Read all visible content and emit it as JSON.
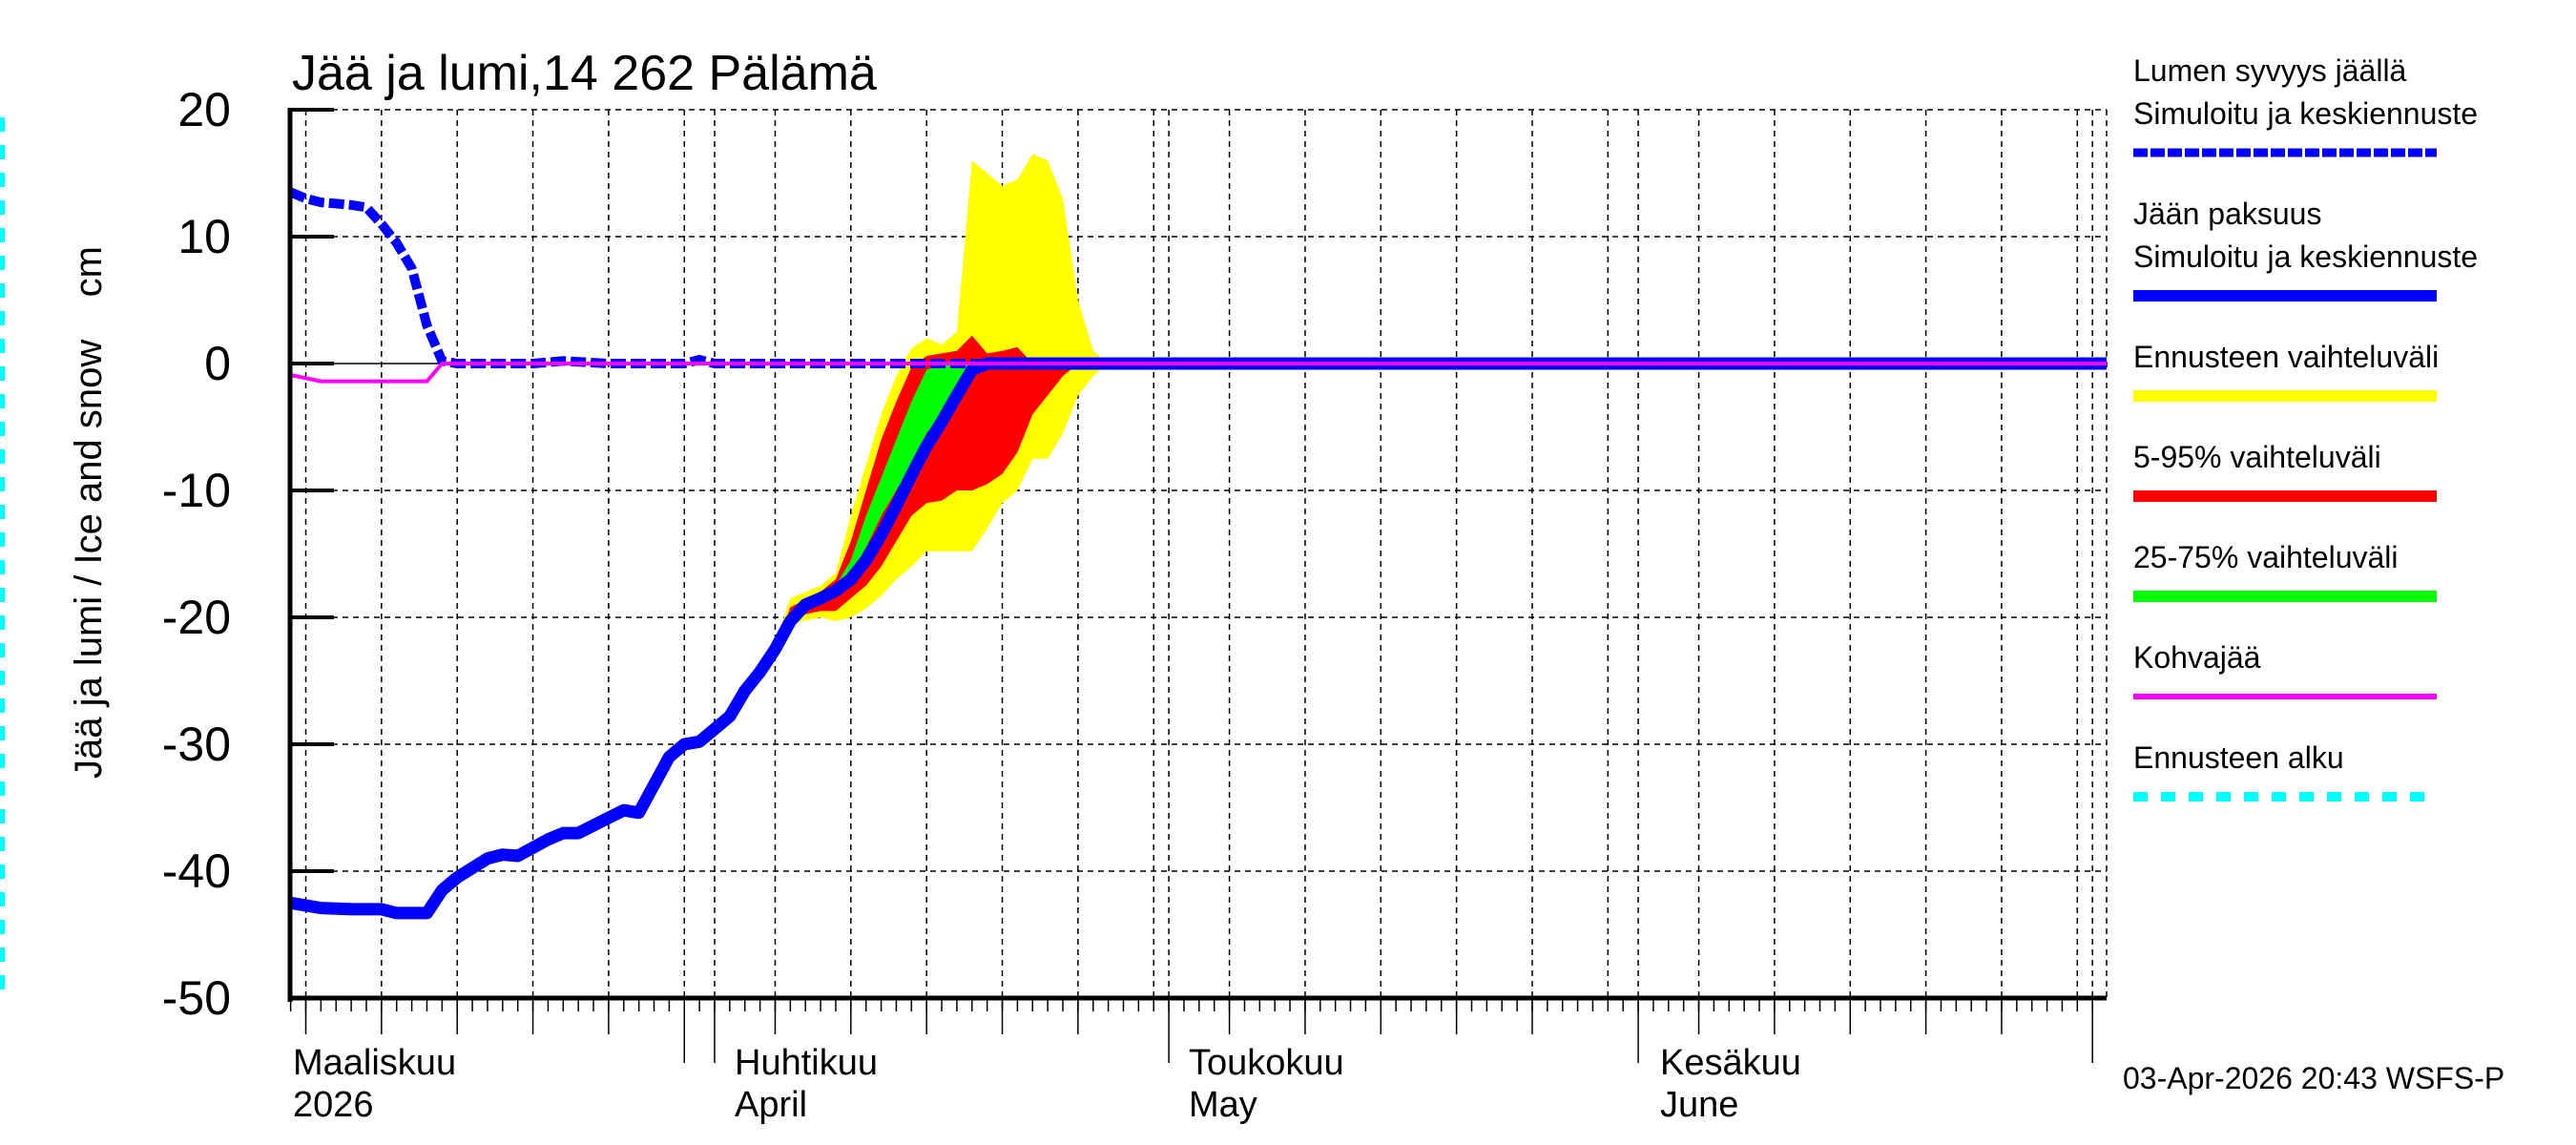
{
  "chart_data": {
    "type": "area",
    "title": "Jää ja lumi,14 262 Pälämä",
    "ylabel": "Jää ja lumi / Ice and snow    cm",
    "xlabel": "",
    "ylim": [
      -50,
      20
    ],
    "yticks": [
      20,
      10,
      0,
      -10,
      -20,
      -30,
      -40,
      -50
    ],
    "grid": true,
    "legend_position": "right",
    "x_axis": {
      "months": [
        {
          "fi": "Maaliskuu",
          "en": "2026"
        },
        {
          "fi": "Huhtikuu",
          "en": "April"
        },
        {
          "fi": "Toukokuu",
          "en": "May"
        },
        {
          "fi": "Kesäkuu",
          "en": "June"
        }
      ],
      "range": [
        "2026-03-04",
        "2026-07-02"
      ]
    },
    "forecast_start": "2026-04-03",
    "series": [
      {
        "name": "Lumen syvyys jäällä — Simuloitu ja keskiennuste",
        "style": "dashed",
        "color": "#0000ff",
        "points": [
          [
            "03-04",
            13.5
          ],
          [
            "03-05",
            13.0
          ],
          [
            "03-06",
            12.7
          ],
          [
            "03-07",
            12.6
          ],
          [
            "03-08",
            12.5
          ],
          [
            "03-09",
            12.3
          ],
          [
            "03-10",
            11.0
          ],
          [
            "03-11",
            9.5
          ],
          [
            "03-12",
            7.5
          ],
          [
            "03-13",
            3.0
          ],
          [
            "03-14",
            0.2
          ],
          [
            "03-15",
            0
          ],
          [
            "03-20",
            0
          ],
          [
            "03-22",
            0.2
          ],
          [
            "03-25",
            0
          ],
          [
            "03-30",
            0
          ],
          [
            "03-31",
            0.3
          ],
          [
            "04-01",
            0
          ],
          [
            "07-02",
            0
          ]
        ]
      },
      {
        "name": "Jään paksuus — Simuloitu ja keskiennuste",
        "style": "solid",
        "color": "#0000ff",
        "points": [
          [
            "03-04",
            -42.5
          ],
          [
            "03-06",
            -42.9
          ],
          [
            "03-08",
            -43.0
          ],
          [
            "03-10",
            -43.0
          ],
          [
            "03-11",
            -43.3
          ],
          [
            "03-13",
            -43.3
          ],
          [
            "03-14",
            -41.5
          ],
          [
            "03-15",
            -40.5
          ],
          [
            "03-17",
            -39.0
          ],
          [
            "03-18",
            -38.7
          ],
          [
            "03-19",
            -38.8
          ],
          [
            "03-21",
            -37.5
          ],
          [
            "03-22",
            -37.0
          ],
          [
            "03-23",
            -37.0
          ],
          [
            "03-25",
            -35.8
          ],
          [
            "03-26",
            -35.2
          ],
          [
            "03-27",
            -35.4
          ],
          [
            "03-29",
            -31.0
          ],
          [
            "03-30",
            -30.0
          ],
          [
            "03-31",
            -29.8
          ],
          [
            "04-01",
            -28.8
          ],
          [
            "04-02",
            -27.8
          ],
          [
            "04-03",
            -25.8
          ],
          [
            "04-04",
            -24.3
          ],
          [
            "04-05",
            -22.5
          ],
          [
            "04-06",
            -20.3
          ],
          [
            "04-07",
            -19.0
          ],
          [
            "04-08",
            -18.5
          ],
          [
            "04-09",
            -17.9
          ],
          [
            "04-10",
            -17.0
          ],
          [
            "04-11",
            -15.5
          ],
          [
            "04-12",
            -13.5
          ],
          [
            "04-13",
            -11.2
          ],
          [
            "04-14",
            -8.8
          ],
          [
            "04-15",
            -6.5
          ],
          [
            "04-16",
            -4.6
          ],
          [
            "04-17",
            -2.5
          ],
          [
            "04-18",
            -0.5
          ],
          [
            "04-19",
            0
          ],
          [
            "07-02",
            0
          ]
        ]
      },
      {
        "name": "Kohvajää",
        "style": "solid",
        "color": "#ff00ff",
        "points": [
          [
            "03-04",
            -0.9
          ],
          [
            "03-06",
            -1.4
          ],
          [
            "03-13",
            -1.4
          ],
          [
            "03-14",
            0
          ],
          [
            "07-02",
            0
          ]
        ]
      },
      {
        "name": "Ennusteen vaihteluväli",
        "style": "band",
        "color": "#ffff00",
        "upper": [
          [
            "04-03",
            -25.5
          ],
          [
            "04-05",
            -22
          ],
          [
            "04-06",
            -18.5
          ],
          [
            "04-08",
            -17.5
          ],
          [
            "04-09",
            -16.5
          ],
          [
            "04-10",
            -12
          ],
          [
            "04-11",
            -8
          ],
          [
            "04-12",
            -4
          ],
          [
            "04-13",
            -1
          ],
          [
            "04-14",
            1.2
          ],
          [
            "04-15",
            2
          ],
          [
            "04-16",
            1.5
          ],
          [
            "04-17",
            2.5
          ],
          [
            "04-18",
            16
          ],
          [
            "04-19",
            15
          ],
          [
            "04-20",
            14
          ],
          [
            "04-21",
            14.5
          ],
          [
            "04-22",
            16.5
          ],
          [
            "04-23",
            16
          ],
          [
            "04-24",
            13
          ],
          [
            "04-25",
            5
          ],
          [
            "04-26",
            1
          ],
          [
            "04-27",
            0
          ]
        ],
        "lower": [
          [
            "04-03",
            -25.8
          ],
          [
            "04-05",
            -23
          ],
          [
            "04-06",
            -20.5
          ],
          [
            "04-08",
            -20
          ],
          [
            "04-09",
            -20.3
          ],
          [
            "04-10",
            -20
          ],
          [
            "04-11",
            -19.3
          ],
          [
            "04-12",
            -18.3
          ],
          [
            "04-13",
            -17
          ],
          [
            "04-14",
            -16
          ],
          [
            "04-15",
            -14.8
          ],
          [
            "04-16",
            -14.8
          ],
          [
            "04-17",
            -14.8
          ],
          [
            "04-18",
            -14.8
          ],
          [
            "04-19",
            -13
          ],
          [
            "04-20",
            -11
          ],
          [
            "04-21",
            -10
          ],
          [
            "04-22",
            -7.5
          ],
          [
            "04-23",
            -7.5
          ],
          [
            "04-24",
            -5.5
          ],
          [
            "04-25",
            -2.5
          ],
          [
            "04-26",
            -1
          ],
          [
            "04-27",
            0
          ]
        ]
      },
      {
        "name": "5-95% vaihteluväli",
        "style": "band",
        "color": "#ff0000",
        "upper": [
          [
            "04-05",
            -22.5
          ],
          [
            "04-06",
            -19.2
          ],
          [
            "04-08",
            -18
          ],
          [
            "04-09",
            -17
          ],
          [
            "04-10",
            -14
          ],
          [
            "04-11",
            -10
          ],
          [
            "04-12",
            -6
          ],
          [
            "04-13",
            -3
          ],
          [
            "04-14",
            -0.3
          ],
          [
            "04-15",
            0.6
          ],
          [
            "04-16",
            0.8
          ],
          [
            "04-17",
            1
          ],
          [
            "04-18",
            2.2
          ],
          [
            "04-19",
            0.8
          ],
          [
            "04-20",
            1
          ],
          [
            "04-21",
            1.3
          ],
          [
            "04-22",
            0
          ],
          [
            "04-25",
            0
          ]
        ],
        "lower": [
          [
            "04-05",
            -23
          ],
          [
            "04-06",
            -20
          ],
          [
            "04-08",
            -19.5
          ],
          [
            "04-09",
            -19.5
          ],
          [
            "04-10",
            -18.5
          ],
          [
            "04-11",
            -17.5
          ],
          [
            "04-12",
            -16
          ],
          [
            "04-13",
            -14
          ],
          [
            "04-14",
            -12
          ],
          [
            "04-15",
            -11
          ],
          [
            "04-16",
            -10.8
          ],
          [
            "04-17",
            -10
          ],
          [
            "04-18",
            -10
          ],
          [
            "04-19",
            -9.5
          ],
          [
            "04-20",
            -8.7
          ],
          [
            "04-21",
            -7
          ],
          [
            "04-22",
            -4
          ],
          [
            "04-23",
            -2.5
          ],
          [
            "04-24",
            -1
          ],
          [
            "04-25",
            0
          ]
        ]
      },
      {
        "name": "25-75% vaihteluväli",
        "style": "band",
        "color": "#00ff00",
        "upper": [
          [
            "04-06",
            -19.5
          ],
          [
            "04-08",
            -18.3
          ],
          [
            "04-09",
            -17.5
          ],
          [
            "04-10",
            -15.5
          ],
          [
            "04-11",
            -12
          ],
          [
            "04-12",
            -9
          ],
          [
            "04-13",
            -6
          ],
          [
            "04-14",
            -3
          ],
          [
            "04-15",
            -0.5
          ],
          [
            "04-16",
            0
          ]
        ],
        "lower": [
          [
            "04-06",
            -19.8
          ],
          [
            "04-08",
            -19
          ],
          [
            "04-09",
            -18.3
          ],
          [
            "04-10",
            -16.5
          ],
          [
            "04-11",
            -14.5
          ],
          [
            "04-12",
            -12
          ],
          [
            "04-13",
            -10
          ],
          [
            "04-14",
            -8
          ],
          [
            "04-15",
            -5.5
          ],
          [
            "04-16",
            -4
          ],
          [
            "04-17",
            -2
          ],
          [
            "04-18",
            -0.5
          ],
          [
            "04-19",
            0
          ]
        ]
      }
    ]
  },
  "legend": {
    "items": [
      {
        "line1": "Lumen syvyys jäällä",
        "line2": "Simuloitu ja keskiennuste",
        "color": "#0000ff",
        "style": "dashed"
      },
      {
        "line1": "Jään paksuus",
        "line2": "Simuloitu ja keskiennuste",
        "color": "#0000ff",
        "style": "solid"
      },
      {
        "line1": "Ennusteen vaihteluväli",
        "color": "#ffff00",
        "style": "solid"
      },
      {
        "line1": "5-95% vaihteluväli",
        "color": "#ff0000",
        "style": "solid"
      },
      {
        "line1": "25-75% vaihteluväli",
        "color": "#00ff00",
        "style": "solid"
      },
      {
        "line1": "Kohvajää",
        "color": "#ff00ff",
        "style": "thin"
      },
      {
        "line1": "Ennusteen alku",
        "color": "#00ffff",
        "style": "dotted"
      }
    ]
  },
  "footer": {
    "timestamp": "03-Apr-2026 20:43 WSFS-P"
  }
}
